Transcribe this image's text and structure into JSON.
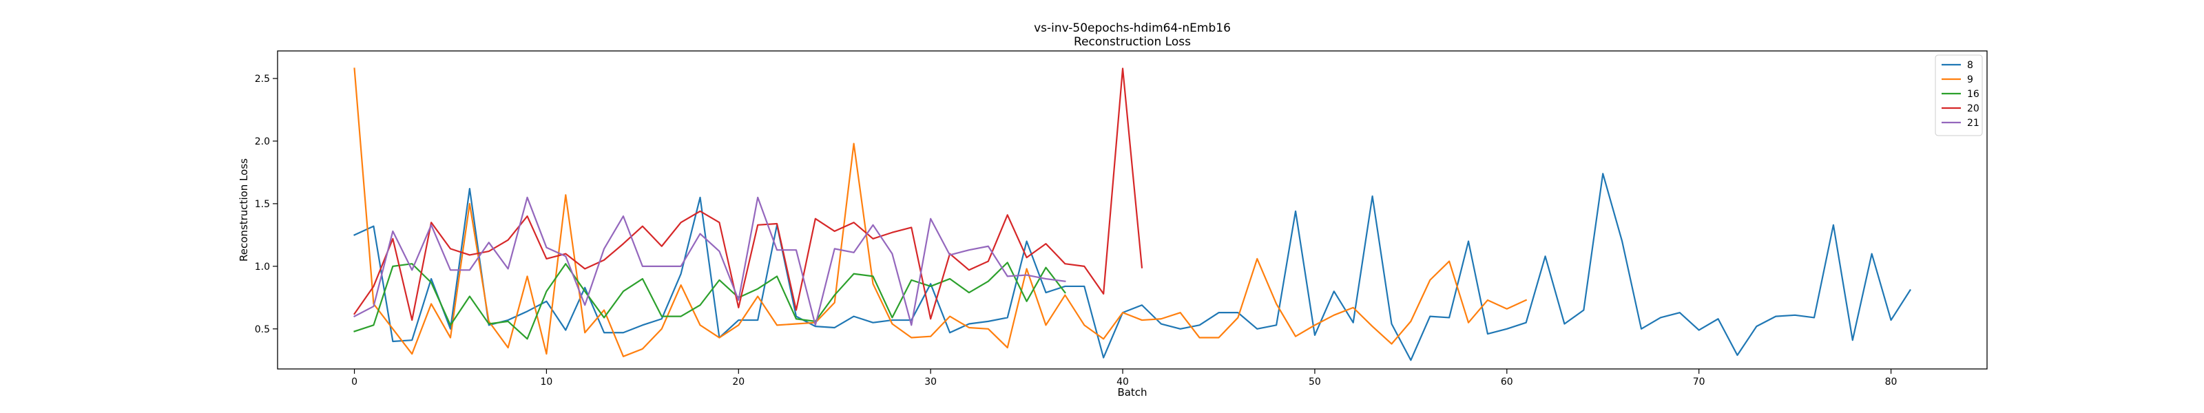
{
  "chart_data": {
    "type": "line",
    "title": "vs-inv-50epochs-hdim64-nEmb16",
    "subtitle": "Reconstruction Loss",
    "xlabel": "Batch",
    "ylabel": "Reconstruction Loss",
    "xlim": [
      -4,
      85
    ],
    "ylim": [
      0.18,
      2.72
    ],
    "xticks": [
      0,
      10,
      20,
      30,
      40,
      50,
      60,
      70,
      80
    ],
    "yticks": [
      0.5,
      1.0,
      1.5,
      2.0,
      2.5
    ],
    "ytick_labels": [
      "0.5",
      "1.0",
      "1.5",
      "2.0",
      "2.5"
    ],
    "grid": false,
    "legend_position": "top-right",
    "series": [
      {
        "name": "8",
        "color": "#1f77b4",
        "values": [
          1.25,
          1.32,
          0.4,
          0.41,
          0.9,
          0.5,
          1.62,
          0.53,
          0.57,
          0.64,
          0.72,
          0.49,
          0.83,
          0.47,
          0.47,
          0.53,
          0.58,
          0.94,
          1.55,
          0.43,
          0.57,
          0.57,
          1.33,
          0.6,
          0.52,
          0.51,
          0.6,
          0.55,
          0.57,
          0.57,
          0.86,
          0.47,
          0.54,
          0.56,
          0.59,
          1.2,
          0.79,
          0.84,
          0.84,
          0.27,
          0.63,
          0.69,
          0.54,
          0.5,
          0.53,
          0.63,
          0.63,
          0.5,
          0.53,
          1.44,
          0.45,
          0.8,
          0.55,
          1.56,
          0.54,
          0.25,
          0.6,
          0.59,
          1.2,
          0.46,
          0.5,
          0.55,
          1.08,
          0.54,
          0.65,
          1.74,
          1.2,
          0.5,
          0.59,
          0.63,
          0.49,
          0.58,
          0.29,
          0.52,
          0.6,
          0.61,
          0.59,
          1.33,
          0.41,
          1.1,
          0.57,
          0.81
        ]
      },
      {
        "name": "9",
        "color": "#ff7f0e",
        "values": [
          2.58,
          0.7,
          0.5,
          0.3,
          0.7,
          0.43,
          1.5,
          0.56,
          0.35,
          0.92,
          0.3,
          1.57,
          0.47,
          0.65,
          0.28,
          0.34,
          0.5,
          0.85,
          0.53,
          0.43,
          0.53,
          0.76,
          0.53,
          0.54,
          0.55,
          0.71,
          1.98,
          0.86,
          0.54,
          0.43,
          0.44,
          0.6,
          0.51,
          0.5,
          0.35,
          0.98,
          0.53,
          0.77,
          0.53,
          0.42,
          0.63,
          0.57,
          0.58,
          0.63,
          0.43,
          0.43,
          0.59,
          1.06,
          0.7,
          0.44,
          0.53,
          0.61,
          0.67,
          0.52,
          0.38,
          0.56,
          0.89,
          1.04,
          0.55,
          0.73,
          0.66,
          0.73
        ]
      },
      {
        "name": "16",
        "color": "#2ca02c",
        "values": [
          0.48,
          0.53,
          1.0,
          1.02,
          0.87,
          0.53,
          0.76,
          0.54,
          0.56,
          0.42,
          0.8,
          1.02,
          0.8,
          0.59,
          0.8,
          0.9,
          0.6,
          0.6,
          0.69,
          0.89,
          0.75,
          0.82,
          0.92,
          0.58,
          0.56,
          0.77,
          0.94,
          0.92,
          0.59,
          0.89,
          0.84,
          0.9,
          0.79,
          0.88,
          1.03,
          0.72,
          0.99,
          0.79
        ]
      },
      {
        "name": "20",
        "color": "#d62728",
        "values": [
          0.62,
          0.84,
          1.22,
          0.57,
          1.35,
          1.14,
          1.09,
          1.12,
          1.21,
          1.4,
          1.06,
          1.1,
          0.98,
          1.05,
          1.18,
          1.32,
          1.16,
          1.35,
          1.44,
          1.35,
          0.67,
          1.33,
          1.34,
          0.65,
          1.38,
          1.28,
          1.35,
          1.22,
          1.27,
          1.31,
          0.58,
          1.1,
          0.97,
          1.04,
          1.41,
          1.07,
          1.18,
          1.02,
          1.0,
          0.78,
          2.58,
          0.99
        ]
      },
      {
        "name": "21",
        "color": "#9467bd",
        "values": [
          0.6,
          0.68,
          1.28,
          0.97,
          1.33,
          0.97,
          0.97,
          1.19,
          0.98,
          1.55,
          1.15,
          1.08,
          0.69,
          1.14,
          1.4,
          1.0,
          1.0,
          1.0,
          1.26,
          1.12,
          0.73,
          1.55,
          1.13,
          1.13,
          0.53,
          1.14,
          1.11,
          1.33,
          1.1,
          0.53,
          1.38,
          1.09,
          1.13,
          1.16,
          0.92,
          0.93,
          0.9,
          0.88
        ]
      }
    ]
  }
}
